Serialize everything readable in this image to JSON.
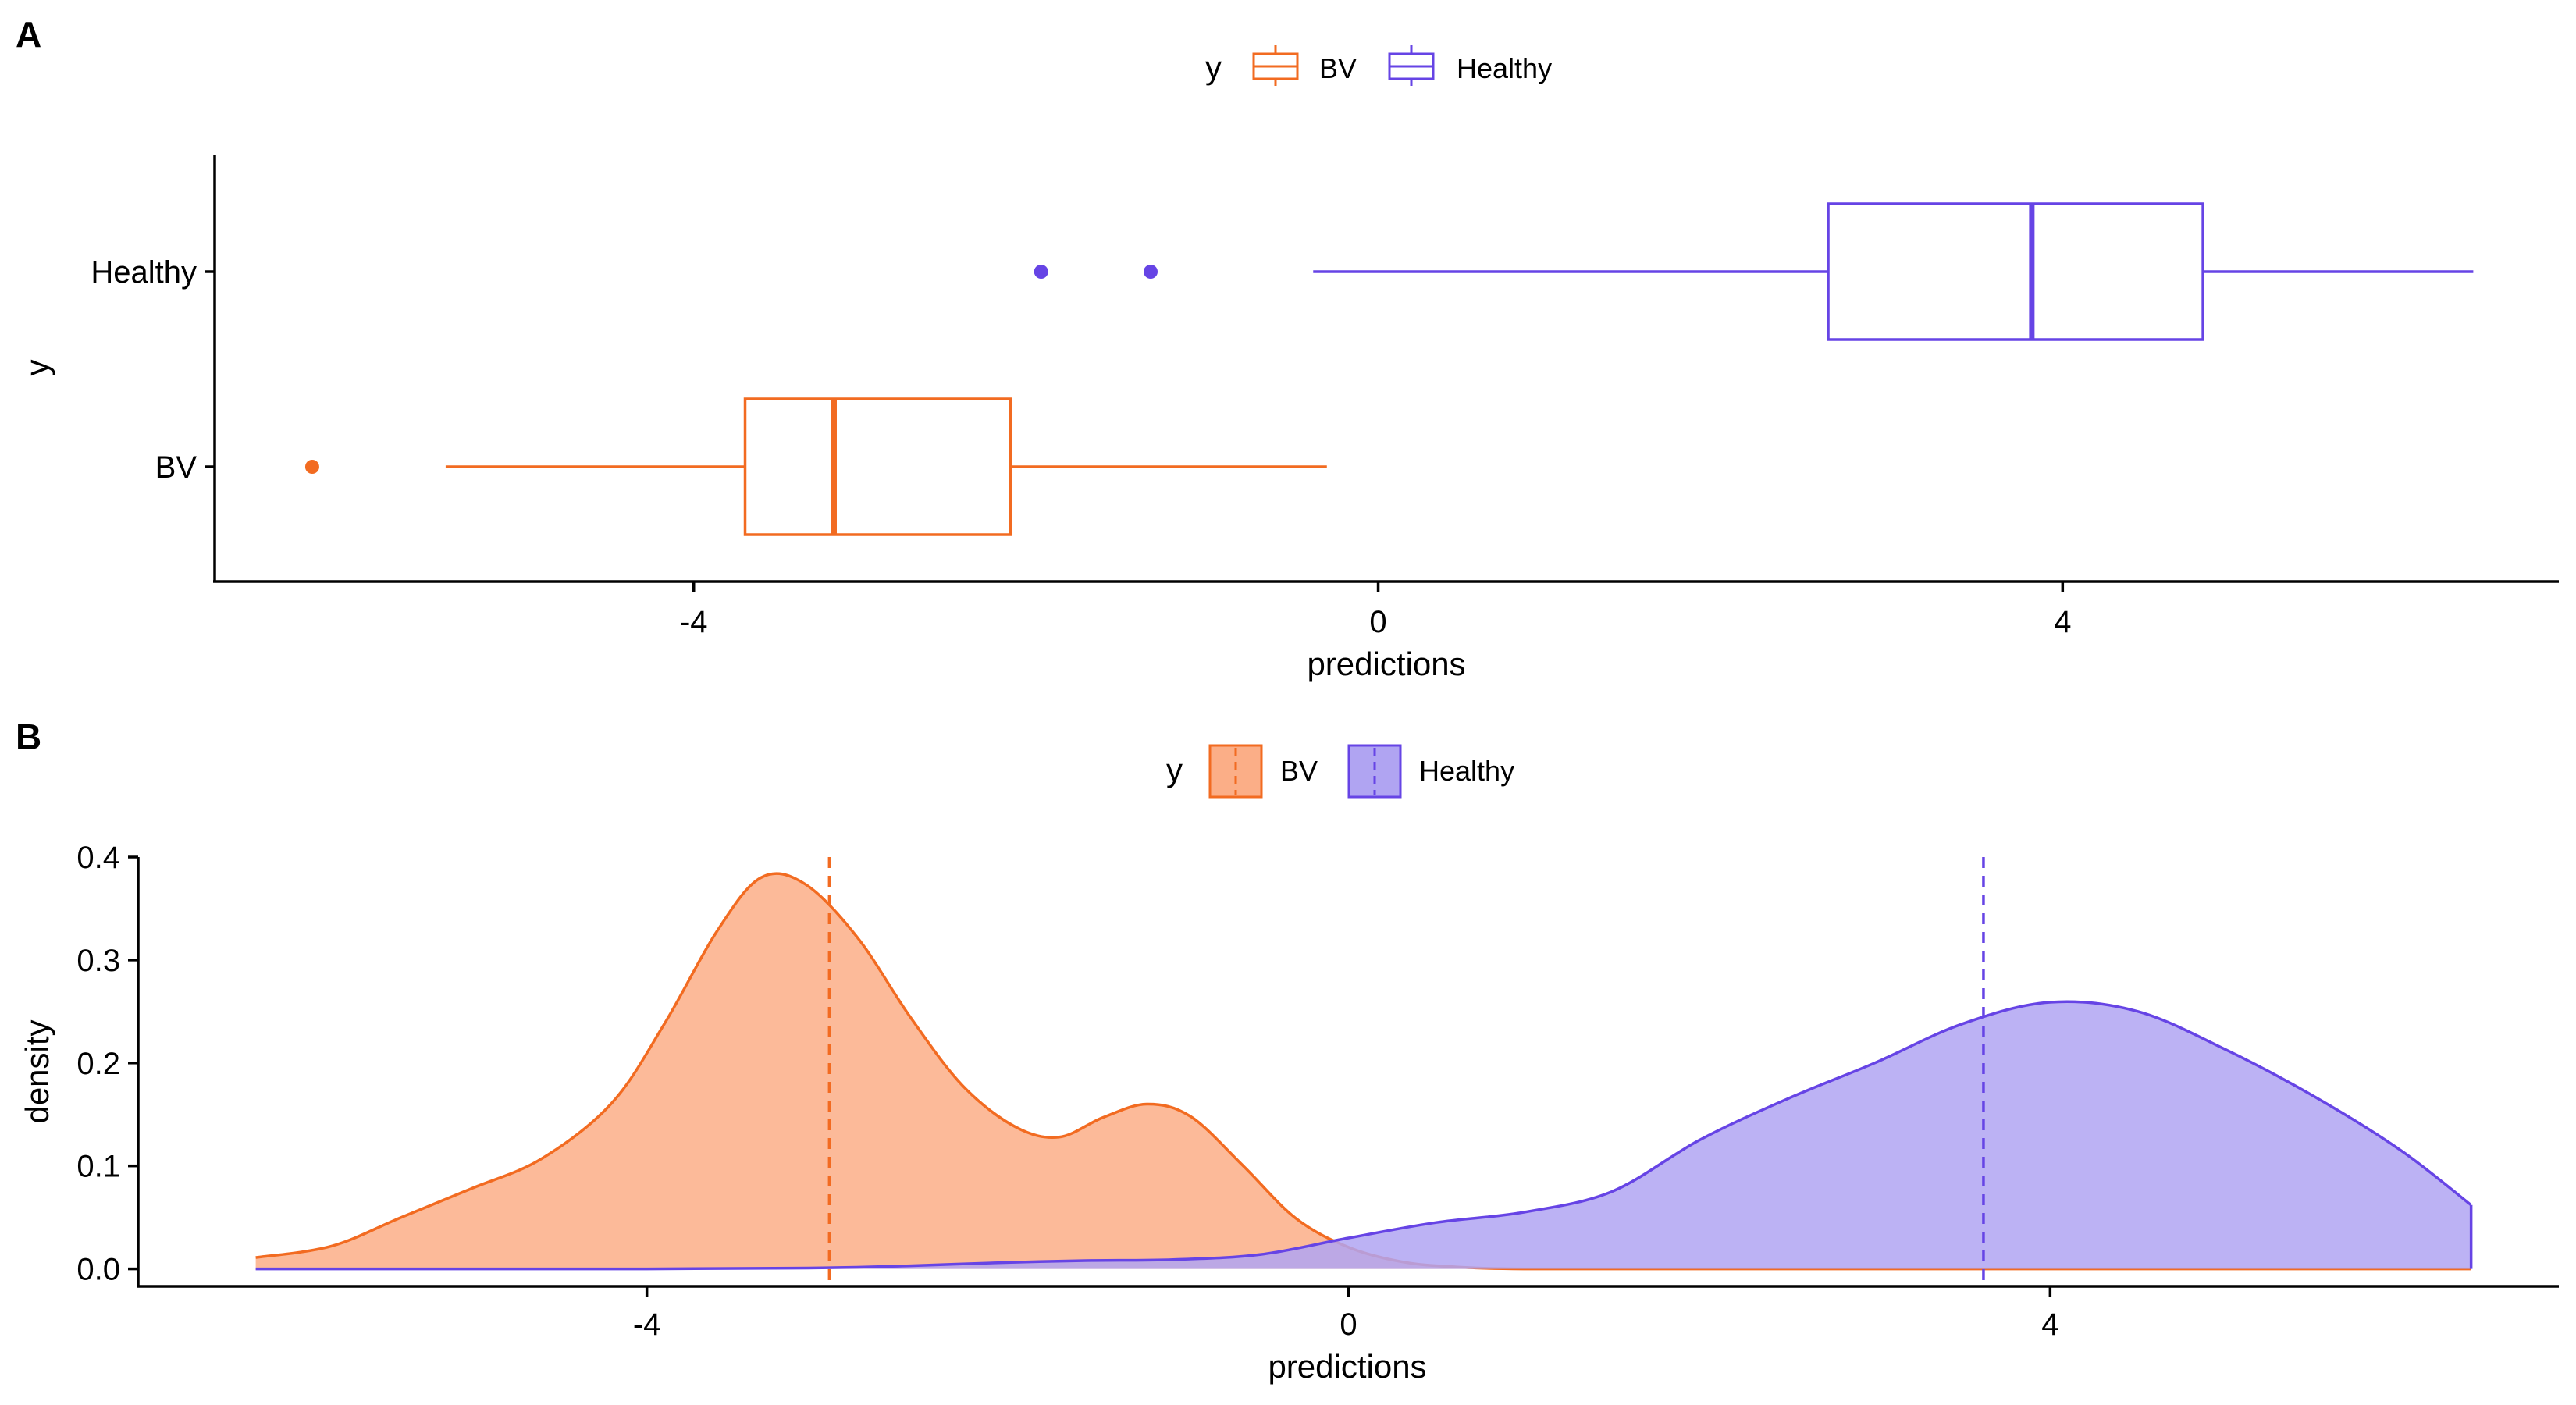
{
  "chart_data": [
    {
      "panel": "A",
      "type": "boxplot",
      "orientation": "horizontal",
      "xlabel": "predictions",
      "ylabel": "y",
      "xlim": [
        -6.8,
        6.9
      ],
      "xticks": [
        -4,
        0,
        4
      ],
      "xtick_labels": [
        "-4",
        "0",
        "4"
      ],
      "categories": [
        "Healthy",
        "BV"
      ],
      "legend": {
        "title": "y",
        "position": "top",
        "entries": [
          "BV",
          "Healthy"
        ]
      },
      "grid": false,
      "series": [
        {
          "name": "BV",
          "color": "#f26b21",
          "whisker_low": -5.45,
          "q1": -3.7,
          "median": -3.18,
          "q3": -2.15,
          "whisker_high": -0.3,
          "outliers": [
            -6.23
          ]
        },
        {
          "name": "Healthy",
          "color": "#6644e5",
          "whisker_low": -0.38,
          "q1": 2.63,
          "median": 3.82,
          "q3": 4.82,
          "whisker_high": 6.4,
          "outliers": [
            -1.97,
            -1.33
          ]
        }
      ]
    },
    {
      "panel": "B",
      "type": "area",
      "subtype": "density",
      "xlabel": "predictions",
      "ylabel": "density",
      "xlim": [
        -6.9,
        6.9
      ],
      "ylim": [
        -0.017,
        0.4
      ],
      "xticks": [
        -4,
        0,
        4
      ],
      "xtick_labels": [
        "-4",
        "0",
        "4"
      ],
      "yticks": [
        0.0,
        0.1,
        0.2,
        0.3,
        0.4
      ],
      "ytick_labels": [
        "0.0",
        "0.1",
        "0.2",
        "0.3",
        "0.4"
      ],
      "legend": {
        "title": "y",
        "position": "top",
        "entries": [
          "BV",
          "Healthy"
        ]
      },
      "grid": false,
      "series": [
        {
          "name": "BV",
          "line_color": "#f26b21",
          "fill_color": "#fbae87",
          "mean": -2.96,
          "x": [
            -6.23,
            -5.8,
            -5.4,
            -5.0,
            -4.6,
            -4.2,
            -3.9,
            -3.6,
            -3.35,
            -3.1,
            -2.8,
            -2.5,
            -2.2,
            -1.9,
            -1.65,
            -1.4,
            -1.15,
            -0.9,
            -0.6,
            -0.3,
            0.0,
            0.3,
            0.6,
            1.0,
            2.0,
            4.0,
            6.4
          ],
          "y": [
            0.011,
            0.022,
            0.05,
            0.078,
            0.107,
            0.161,
            0.238,
            0.328,
            0.38,
            0.374,
            0.322,
            0.245,
            0.178,
            0.138,
            0.128,
            0.147,
            0.16,
            0.148,
            0.1,
            0.049,
            0.021,
            0.007,
            0.002,
            0.0,
            0.0,
            0.0,
            0.0
          ]
        },
        {
          "name": "Healthy",
          "line_color": "#6644e5",
          "fill_color": "#b0a4f2",
          "mean": 3.62,
          "x": [
            -6.23,
            -4.0,
            -3.0,
            -2.5,
            -2.0,
            -1.5,
            -1.0,
            -0.5,
            0.0,
            0.5,
            1.0,
            1.5,
            2.0,
            2.5,
            3.0,
            3.5,
            4.0,
            4.5,
            5.0,
            5.5,
            6.0,
            6.4
          ],
          "y": [
            0.0,
            0.0,
            0.001,
            0.003,
            0.006,
            0.008,
            0.009,
            0.014,
            0.03,
            0.045,
            0.055,
            0.075,
            0.125,
            0.165,
            0.2,
            0.238,
            0.259,
            0.25,
            0.213,
            0.168,
            0.115,
            0.062
          ]
        }
      ]
    }
  ]
}
